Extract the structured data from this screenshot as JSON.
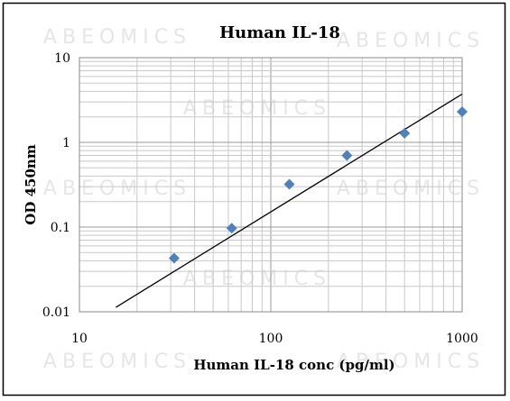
{
  "chart_data": {
    "type": "scatter",
    "title": "Human IL-18",
    "xlabel": "Human IL-18 conc (pg/ml)",
    "ylabel": "OD 450nm",
    "x_scale": "log",
    "y_scale": "log",
    "xlim": [
      10,
      1000
    ],
    "ylim": [
      0.01,
      10
    ],
    "x_ticks": [
      "10",
      "100",
      "1000"
    ],
    "y_ticks": [
      "0.01",
      "0.1",
      "1",
      "10"
    ],
    "grid": true,
    "legend": "none",
    "series": [
      {
        "x": [
          31.25,
          62.5,
          125,
          250,
          500,
          1000
        ],
        "y": [
          0.043,
          0.097,
          0.32,
          0.7,
          1.28,
          2.3
        ],
        "color": "#4f81bd",
        "marker": "diamond"
      }
    ],
    "trendline": {
      "type": "power",
      "from": [
        15.5,
        0.0113
      ],
      "to": [
        1000,
        3.72
      ],
      "color": "#000000"
    }
  },
  "watermark": {
    "text": "ABEOMICS",
    "color": "#e6e6e6"
  },
  "colors": {
    "frame": "#000000",
    "grid": "#c8c8c8",
    "marker": "#4f81bd"
  }
}
